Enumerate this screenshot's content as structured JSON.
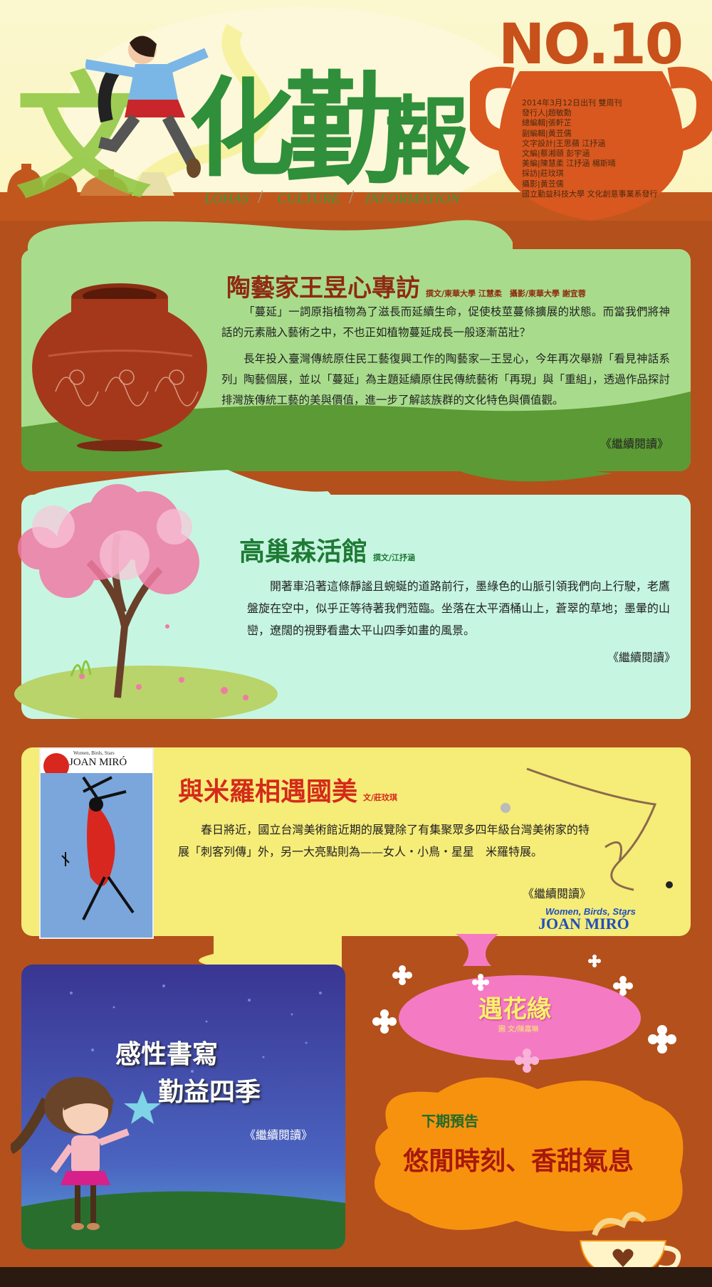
{
  "header": {
    "title_chars": [
      "文",
      "化",
      "勤",
      "報"
    ],
    "tagline": [
      "LOHAS",
      "CULTURE",
      "INFORMATION"
    ],
    "issue_no": "NO.10",
    "credits": [
      "2014年3月12日出刊 雙周刊",
      "發行人|趙敏勳",
      "總編輯|張軒芷",
      "副編輯|黃苙儒",
      "文字設計|王思蘋 江抒涵",
      "文編|蔡湘頤 彭宇涵",
      "美編|陳慧柔 江抒涵 楊斯晴",
      "採訪|莊玟琪",
      "攝影|黃苙儒",
      "國立勤益科技大學 文化創意事業系發行"
    ]
  },
  "article1": {
    "title": "陶藝家王昱心專訪",
    "byline": "撰文/東華大學 江慧柔　攝影/東華大學 謝宜蓉",
    "paragraphs": [
      "「蔓延」一詞原指植物為了滋長而延續生命，促使枝莖蔓條擴展的狀態。而當我們將神話的元素融入藝術之中，不也正如植物蔓延成長一般逐漸茁壯？",
      "長年投入臺灣傳統原住民工藝復興工作的陶藝家—王昱心，今年再次舉辦「看見神話系列」陶藝個展，並以「蔓延」為主題延續原住民傳統藝術「再現」與「重組」，透過作品探討排灣族傳統工藝的美與價值，進一步了解該族群的文化特色與價值觀。"
    ],
    "read_more": "《繼續閱讀》"
  },
  "article2": {
    "title": "高巢森活館",
    "byline": "撰文/江抒涵",
    "paragraphs": [
      "開著車沿著這條靜謐且蜿蜒的道路前行，墨綠色的山脈引領我們向上行駛，老鷹盤旋在空中，似乎正等待著我們蒞臨。坐落在太平酒桶山上，蒼翠的草地；墨暈的山巒，遼闊的視野看盡太平山四季如畫的風景。"
    ],
    "read_more": "《繼續閱讀》"
  },
  "article3": {
    "title": "與米羅相遇國美",
    "byline": "文/莊玟琪",
    "paragraphs": [
      "春日將近，國立台灣美術館近期的展覽除了有集聚眾多四年級台灣美術家的特展「刺客列傳」外，另一大亮點則為——女人‧小鳥‧星星　米羅特展。"
    ],
    "read_more": "《繼續閱讀》",
    "poster_small_title": "Women, Birds, Stars",
    "poster_name": "JOAN MIRÓ",
    "logo_line1": "Women, Birds, Stars",
    "logo_line2": "JOAN MIRÓ"
  },
  "article4": {
    "title_line1": "感性書寫",
    "title_line2": "勤益四季",
    "read_more": "《繼續閱讀》"
  },
  "article5": {
    "title": "遇花緣",
    "byline": "圖 文/陳嘉琳"
  },
  "next_issue": {
    "label": "下期預告",
    "title": "悠閒時刻、香甜氣息"
  },
  "colors": {
    "background": "#b4501c",
    "header_bg": "#fbf6c6",
    "title_green": "#2f8f3a",
    "pot_orange": "#d9581f",
    "card1_bg": "#a8dc8c",
    "card2_bg": "#c6f6e2",
    "card3_bg": "#f6ec78",
    "card4_bg": "#3e3a9a",
    "pink_cloud": "#f57ac4",
    "orange_cloud": "#f7920f",
    "dark_red_title": "#8f2a12",
    "red_title": "#d42a1a",
    "green_title": "#1f7a35"
  },
  "icons": [
    "clay-pot-icon",
    "cherry-tree-icon",
    "miro-poster-image",
    "girl-illustration",
    "flower-icon",
    "teacup-icon",
    "star-icon"
  ]
}
